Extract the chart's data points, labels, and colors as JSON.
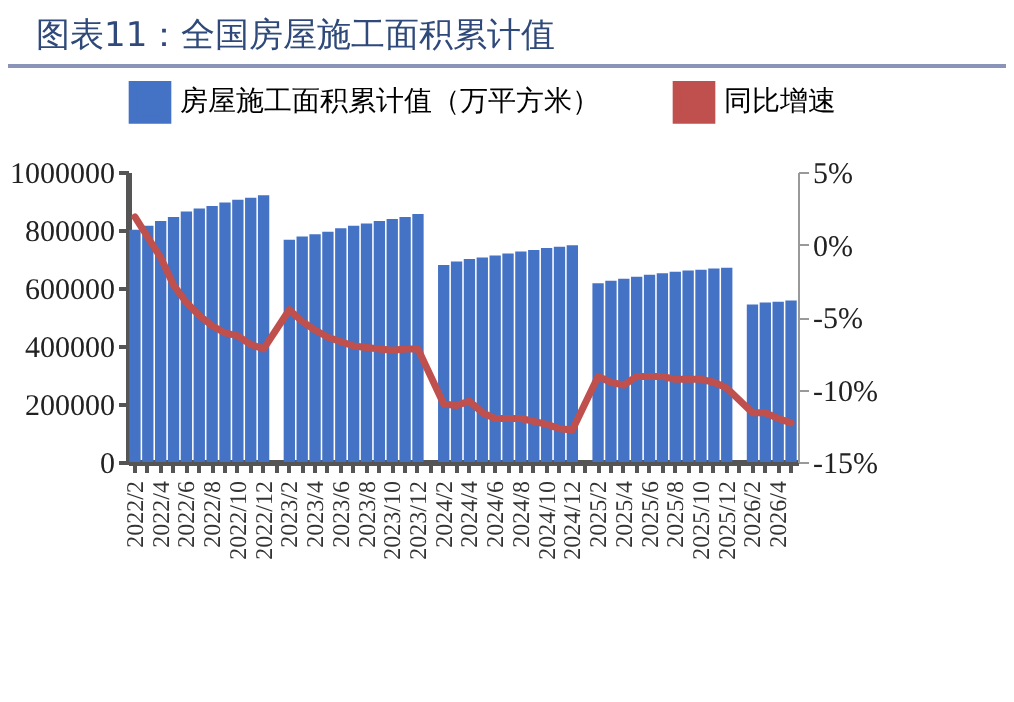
{
  "chart_data": {
    "type": "bar",
    "title": "图表11：全国房屋施工面积累计值",
    "categories": [
      "2022/2",
      null,
      "2022/4",
      null,
      "2022/6",
      null,
      "2022/8",
      null,
      "2022/10",
      null,
      "2022/12",
      null,
      "2023/2",
      null,
      "2023/4",
      null,
      "2023/6",
      null,
      "2023/8",
      null,
      "2023/10",
      null,
      "2023/12",
      null,
      "2024/2",
      null,
      "2024/4",
      null,
      "2024/6",
      null,
      "2024/8",
      null,
      "2024/10",
      null,
      "2024/12",
      null,
      "2025/2",
      null,
      "2025/4",
      null,
      "2025/6",
      null,
      "2025/8",
      null,
      "2025/10",
      null,
      "2025/12",
      null,
      "2026/2",
      null,
      "2026/4",
      null
    ],
    "series": [
      {
        "name": "房屋施工面积累计值（万平方米）",
        "color": "#4472c4",
        "values": [
          801000,
          815000,
          831000,
          845000,
          864000,
          874000,
          883000,
          895000,
          904000,
          911000,
          920000,
          null,
          766000,
          778000,
          785000,
          794000,
          806000,
          815000,
          822000,
          831000,
          838000,
          845000,
          855000,
          null,
          679000,
          691000,
          700000,
          705000,
          712000,
          719000,
          726000,
          731000,
          738000,
          742000,
          747000,
          null,
          616000,
          625000,
          632000,
          639000,
          646000,
          651000,
          656000,
          660000,
          663000,
          667000,
          670000,
          null,
          543000,
          550000,
          553000,
          557000
        ]
      },
      {
        "name": "同比增速",
        "type": "line",
        "axis": "y2",
        "color": "#c0504d",
        "values": [
          1.9,
          0.5,
          -0.9,
          -2.8,
          -4.0,
          -4.9,
          -5.6,
          -6.1,
          -6.3,
          -6.9,
          -7.2,
          null,
          -4.5,
          -5.3,
          -5.9,
          -6.4,
          -6.7,
          -7.0,
          -7.1,
          -7.2,
          -7.3,
          -7.2,
          -7.2,
          null,
          -11.0,
          -11.1,
          -10.8,
          -11.6,
          -12.0,
          -12.0,
          -12.0,
          -12.2,
          -12.4,
          -12.7,
          -12.8,
          null,
          -9.1,
          -9.5,
          -9.7,
          -9.1,
          -9.1,
          -9.1,
          -9.3,
          -9.3,
          -9.3,
          -9.5,
          -9.9,
          null,
          -11.6,
          -11.6,
          -12.0,
          -12.3
        ]
      }
    ],
    "ylim": [
      0,
      1000000
    ],
    "yticks": [
      0,
      200000,
      400000,
      600000,
      800000,
      1000000
    ],
    "y2lim": [
      -15,
      5
    ],
    "y2ticks": [
      {
        "value": -15,
        "label": "-15%"
      },
      {
        "value": -10,
        "label": "-10%"
      },
      {
        "value": -5,
        "label": "-5%"
      },
      {
        "value": 0,
        "label": "0%"
      },
      {
        "value": 5,
        "label": "5%"
      }
    ],
    "legend": "top",
    "grid": false
  }
}
